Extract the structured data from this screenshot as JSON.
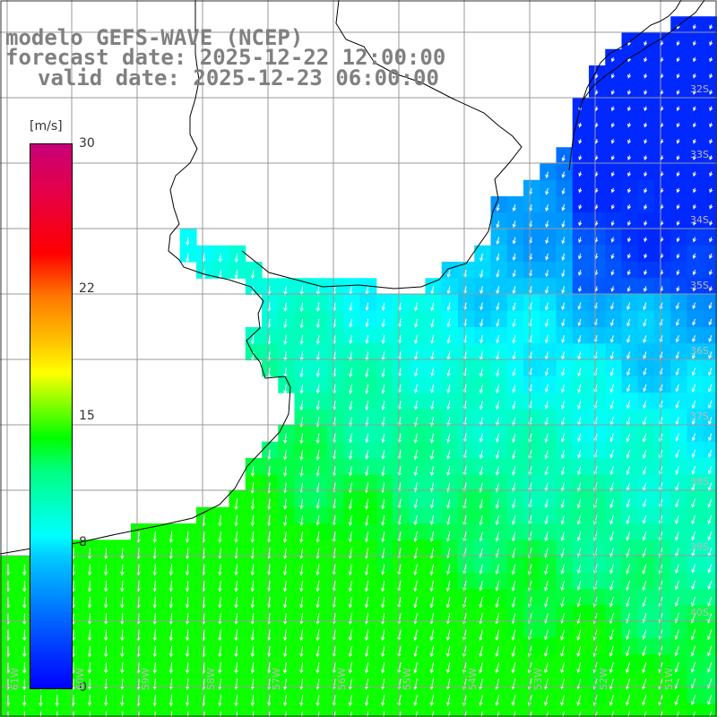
{
  "title": {
    "line1": "modelo GEFS-WAVE (NCEP)",
    "line2": "forecast date: 2025-12-22 12:00:00",
    "line3": "valid date: 2025-12-23 06:00:00"
  },
  "colorbar": {
    "units": "[m/s]",
    "ticks": [
      "30",
      "22",
      "15",
      "8",
      "0"
    ],
    "tick_values": [
      30,
      22,
      15,
      8,
      0
    ],
    "range": [
      0,
      30
    ]
  },
  "map": {
    "lat_labels": [
      "32S",
      "33S",
      "34S",
      "35S",
      "36S",
      "37S",
      "38S",
      "39S",
      "40S"
    ],
    "lon_labels": [
      "61W",
      "60W",
      "59W",
      "58W",
      "57W",
      "56W",
      "55W",
      "54W",
      "53W",
      "52W",
      "51W"
    ],
    "lat_range": [
      -41.2,
      -31.4
    ],
    "lon_range": [
      -61.3,
      -50.5
    ],
    "colors": {
      "land": "#ffffff",
      "coast": "#000000",
      "grid": "#999999",
      "arrow": "#ffffff"
    }
  }
}
